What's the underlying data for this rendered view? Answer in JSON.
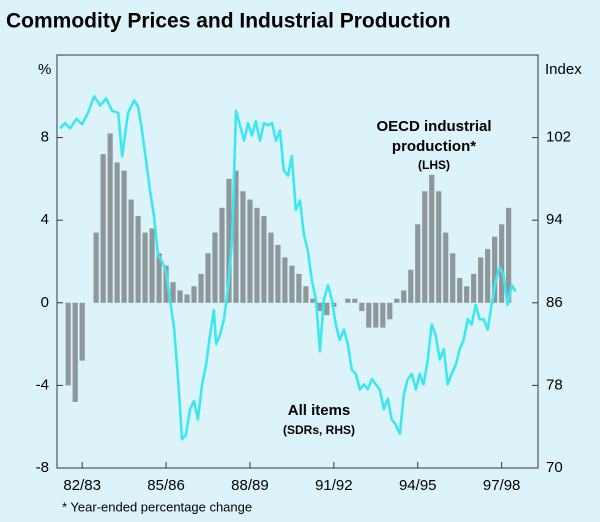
{
  "chart_data": {
    "type": "combo",
    "title": "Commodity Prices and Industrial Production",
    "y_label": "%",
    "y2_label": "Index",
    "annotations": [
      "OECD industrial",
      "production*",
      "(LHS)",
      "All items",
      "(SDRs, RHS)"
    ],
    "footnote": "* Year-ended percentage change",
    "xlim": [
      1982.1,
      1999.3
    ],
    "xticks": [
      {
        "value": 1983,
        "label": "82/83"
      },
      {
        "value": 1986,
        "label": "85/86"
      },
      {
        "value": 1989,
        "label": "88/89"
      },
      {
        "value": 1992,
        "label": "91/92"
      },
      {
        "value": 1995,
        "label": "94/95"
      },
      {
        "value": 1998,
        "label": "97/98"
      }
    ],
    "ylim": [
      -8,
      12
    ],
    "yticks": [
      -8,
      -4,
      0,
      4,
      8
    ],
    "y2lim": [
      70,
      110
    ],
    "y2ticks": [
      70,
      78,
      86,
      94,
      102
    ],
    "series": [
      {
        "type": "bar",
        "color": "#8e9799",
        "x": [
          1982.5,
          1982.75,
          1983,
          1983.25,
          1983.5,
          1983.75,
          1984,
          1984.25,
          1984.5,
          1984.75,
          1985,
          1985.25,
          1985.5,
          1985.75,
          1986,
          1986.25,
          1986.5,
          1986.75,
          1987,
          1987.25,
          1987.5,
          1987.75,
          1988,
          1988.25,
          1988.5,
          1988.75,
          1989,
          1989.25,
          1989.5,
          1989.75,
          1990,
          1990.25,
          1990.5,
          1990.75,
          1991,
          1991.25,
          1991.5,
          1991.75,
          1992,
          1992.25,
          1992.5,
          1992.75,
          1993,
          1993.25,
          1993.5,
          1993.75,
          1994,
          1994.25,
          1994.5,
          1994.75,
          1995,
          1995.25,
          1995.5,
          1995.75,
          1996,
          1996.25,
          1996.5,
          1996.75,
          1997,
          1997.25,
          1997.5,
          1997.75,
          1998,
          1998.25
        ],
        "values": [
          -4,
          -4.8,
          -2.8,
          0,
          3.4,
          7.2,
          8.2,
          6.8,
          6.4,
          5.0,
          4.2,
          3.4,
          3.6,
          2.4,
          1.8,
          1.0,
          0.6,
          0.4,
          0.8,
          1.4,
          2.4,
          3.4,
          4.6,
          6.0,
          6.4,
          5.4,
          5.0,
          4.6,
          4.2,
          3.4,
          2.8,
          2.2,
          1.8,
          1.4,
          0.8,
          0.2,
          -0.4,
          -0.6,
          -0.2,
          0,
          0.2,
          0.2,
          -0.4,
          -1.2,
          -1.2,
          -1.2,
          -0.8,
          0.2,
          0.6,
          1.6,
          3.8,
          5.4,
          6.2,
          5.4,
          3.4,
          2.4,
          1.2,
          0.8,
          1.4,
          2.2,
          2.6,
          3.2,
          3.8,
          4.6
        ]
      },
      {
        "type": "line",
        "axis": "y2",
        "color": "#3ee6f2",
        "x": [
          1982.21,
          1982.39,
          1982.57,
          1982.79,
          1983.0,
          1983.21,
          1983.43,
          1983.64,
          1983.86,
          1984.07,
          1984.29,
          1984.43,
          1984.64,
          1984.86,
          1985.0,
          1985.14,
          1985.29,
          1985.43,
          1985.57,
          1985.71,
          1985.86,
          1986.0,
          1986.14,
          1986.29,
          1986.43,
          1986.57,
          1986.71,
          1986.86,
          1987.0,
          1987.14,
          1987.29,
          1987.43,
          1987.57,
          1987.71,
          1987.79,
          1987.93,
          1988.07,
          1988.21,
          1988.36,
          1988.5,
          1988.64,
          1988.79,
          1988.93,
          1989.07,
          1989.21,
          1989.36,
          1989.5,
          1989.64,
          1989.79,
          1989.93,
          1990.07,
          1990.21,
          1990.36,
          1990.5,
          1990.64,
          1990.79,
          1990.93,
          1991.07,
          1991.21,
          1991.36,
          1991.5,
          1991.64,
          1991.79,
          1991.93,
          1992.07,
          1992.21,
          1992.36,
          1992.5,
          1992.64,
          1992.79,
          1992.93,
          1993.07,
          1993.21,
          1993.36,
          1993.5,
          1993.64,
          1993.79,
          1993.93,
          1994.07,
          1994.21,
          1994.36,
          1994.5,
          1994.64,
          1994.79,
          1994.93,
          1995.07,
          1995.21,
          1995.36,
          1995.5,
          1995.64,
          1995.79,
          1995.93,
          1996.07,
          1996.21,
          1996.36,
          1996.5,
          1996.64,
          1996.79,
          1996.93,
          1997.07,
          1997.21,
          1997.36,
          1997.5,
          1997.64,
          1997.79,
          1997.93,
          1998.07,
          1998.21,
          1998.36,
          1998.5
        ],
        "values": [
          102.9,
          103.4,
          102.9,
          103.8,
          103.3,
          104.4,
          106.0,
          105.1,
          105.8,
          104.6,
          104.4,
          100.2,
          104.4,
          105.6,
          105.0,
          102.7,
          99.7,
          96.8,
          94.4,
          90.6,
          90.0,
          89.0,
          86.3,
          83.4,
          78.6,
          72.8,
          73.2,
          75.7,
          76.5,
          74.7,
          78.1,
          80.0,
          82.9,
          85.3,
          82.0,
          82.9,
          84.4,
          87.3,
          92.1,
          104.6,
          103.2,
          101.7,
          103.4,
          102.2,
          103.6,
          101.7,
          103.4,
          103.2,
          103.4,
          101.7,
          102.7,
          98.8,
          98.3,
          100.2,
          95.0,
          95.9,
          92.6,
          91.1,
          88.2,
          86.3,
          81.3,
          86.3,
          87.7,
          86.3,
          83.9,
          82.4,
          83.4,
          82.0,
          79.5,
          79.1,
          77.6,
          78.1,
          77.6,
          78.6,
          78.1,
          77.6,
          75.7,
          76.7,
          74.7,
          74.2,
          73.3,
          77.1,
          78.6,
          79.1,
          77.6,
          79.1,
          78.1,
          80.5,
          83.9,
          82.9,
          80.5,
          81.5,
          78.1,
          79.1,
          80.0,
          81.5,
          82.4,
          84.4,
          83.9,
          85.8,
          84.4,
          84.4,
          83.4,
          85.8,
          88.2,
          89.4,
          88.7,
          85.8,
          87.7,
          87.1
        ]
      }
    ]
  }
}
